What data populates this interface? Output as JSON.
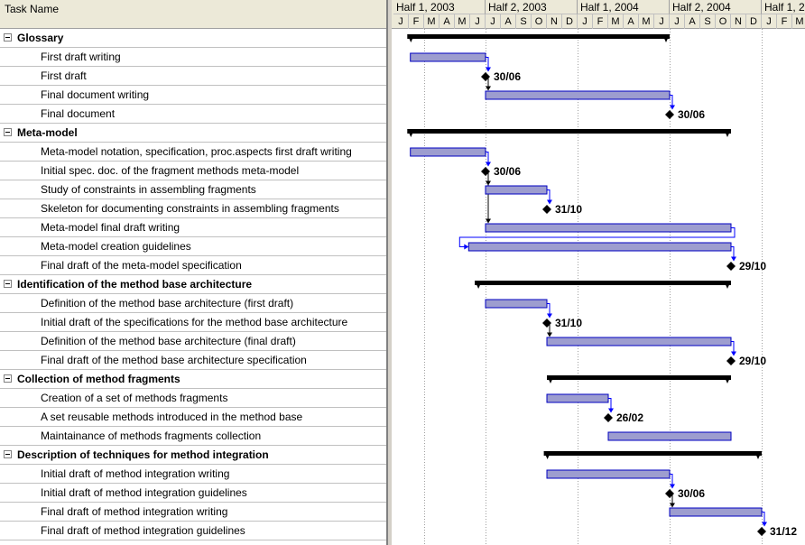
{
  "table": {
    "header": "Task Name",
    "tasks": [
      {
        "name": "Glossary",
        "summary": true
      },
      {
        "name": "First draft writing",
        "summary": false
      },
      {
        "name": "First draft",
        "summary": false
      },
      {
        "name": "Final document writing",
        "summary": false
      },
      {
        "name": "Final document",
        "summary": false
      },
      {
        "name": "Meta-model",
        "summary": true
      },
      {
        "name": "Meta-model notation, specification, proc.aspects first draft writing",
        "summary": false
      },
      {
        "name": "Initial spec. doc. of the fragment methods meta-model",
        "summary": false
      },
      {
        "name": "Study of constraints in assembling fragments",
        "summary": false
      },
      {
        "name": "Skeleton for documenting constraints in assembling fragments",
        "summary": false
      },
      {
        "name": "Meta-model final draft writing",
        "summary": false
      },
      {
        "name": "Meta-model creation guidelines",
        "summary": false
      },
      {
        "name": "Final draft of the meta-model specification",
        "summary": false
      },
      {
        "name": "Identification of the method base architecture",
        "summary": true
      },
      {
        "name": "Definition of the method base architecture (first draft)",
        "summary": false
      },
      {
        "name": "Initial draft of the specifications for the method base architecture",
        "summary": false
      },
      {
        "name": "Definition of the method base architecture (final draft)",
        "summary": false
      },
      {
        "name": "Final draft of the method base architecture specification",
        "summary": false
      },
      {
        "name": "Collection of method fragments",
        "summary": true
      },
      {
        "name": "Creation of a set of methods fragments",
        "summary": false
      },
      {
        "name": "A set reusable methods introduced in the method base",
        "summary": false
      },
      {
        "name": "Maintainance of methods fragments collection",
        "summary": false
      },
      {
        "name": "Description of techniques for method integration",
        "summary": true
      },
      {
        "name": "Initial draft of method integration  writing",
        "summary": false
      },
      {
        "name": "Initial draft of method integration guidelines",
        "summary": false
      },
      {
        "name": " Final draft of method integration  writing",
        "summary": false
      },
      {
        "name": "Final draft of method integration guidelines",
        "summary": false
      }
    ]
  },
  "timeline": {
    "halves": [
      "Half 1, 2003",
      "Half 2, 2003",
      "Half 1, 2004",
      "Half 2, 2004",
      "Half 1, 2005"
    ],
    "months": [
      "J",
      "F",
      "M",
      "A",
      "M",
      "J",
      "J",
      "A",
      "S",
      "O",
      "N",
      "D",
      "J",
      "F",
      "M",
      "A",
      "M",
      "J",
      "J",
      "A",
      "S",
      "O",
      "N",
      "D",
      "J",
      "F",
      "M"
    ]
  },
  "colors": {
    "bar_fill": "#9d9dcf",
    "bar_border": "#0000c0",
    "summary": "#000000",
    "link": "#0000ff",
    "header_bg": "#ece9d8"
  },
  "chart_data": {
    "type": "gantt",
    "x_unit": "month index from Jan 2003 (0 = start of January 2003)",
    "tasks": [
      {
        "row": 0,
        "kind": "summary",
        "start": 0.9,
        "end": 18.0
      },
      {
        "row": 1,
        "kind": "task",
        "start": 1.1,
        "end": 6.0
      },
      {
        "row": 2,
        "kind": "milestone",
        "at": 6.0,
        "label": "30/06"
      },
      {
        "row": 3,
        "kind": "task",
        "start": 6.0,
        "end": 18.0
      },
      {
        "row": 4,
        "kind": "milestone",
        "at": 18.0,
        "label": "30/06"
      },
      {
        "row": 5,
        "kind": "summary",
        "start": 0.9,
        "end": 22.0
      },
      {
        "row": 6,
        "kind": "task",
        "start": 1.1,
        "end": 6.0
      },
      {
        "row": 7,
        "kind": "milestone",
        "at": 6.0,
        "label": "30/06"
      },
      {
        "row": 8,
        "kind": "task",
        "start": 6.0,
        "end": 10.0
      },
      {
        "row": 9,
        "kind": "milestone",
        "at": 10.0,
        "label": "31/10"
      },
      {
        "row": 10,
        "kind": "task",
        "start": 6.0,
        "end": 22.0
      },
      {
        "row": 11,
        "kind": "task",
        "start": 4.9,
        "end": 22.0
      },
      {
        "row": 12,
        "kind": "milestone",
        "at": 22.0,
        "label": "29/10"
      },
      {
        "row": 13,
        "kind": "summary",
        "start": 5.3,
        "end": 22.0
      },
      {
        "row": 14,
        "kind": "task",
        "start": 6.0,
        "end": 10.0
      },
      {
        "row": 15,
        "kind": "milestone",
        "at": 10.0,
        "label": "31/10"
      },
      {
        "row": 16,
        "kind": "task",
        "start": 10.0,
        "end": 22.0
      },
      {
        "row": 17,
        "kind": "milestone",
        "at": 22.0,
        "label": "29/10"
      },
      {
        "row": 18,
        "kind": "summary",
        "start": 10.0,
        "end": 22.0
      },
      {
        "row": 19,
        "kind": "task",
        "start": 10.0,
        "end": 14.0
      },
      {
        "row": 20,
        "kind": "milestone",
        "at": 14.0,
        "label": "26/02"
      },
      {
        "row": 21,
        "kind": "task",
        "start": 14.0,
        "end": 22.0
      },
      {
        "row": 22,
        "kind": "summary",
        "start": 9.8,
        "end": 24.0
      },
      {
        "row": 23,
        "kind": "task",
        "start": 10.0,
        "end": 18.0
      },
      {
        "row": 24,
        "kind": "milestone",
        "at": 18.0,
        "label": "30/06"
      },
      {
        "row": 25,
        "kind": "task",
        "start": 18.0,
        "end": 24.0
      },
      {
        "row": 26,
        "kind": "milestone",
        "at": 24.0,
        "label": "31/12"
      }
    ],
    "links": [
      {
        "from": 1,
        "to": 2,
        "color": "blue"
      },
      {
        "from": 2,
        "to": 3,
        "color": "black"
      },
      {
        "from": 3,
        "to": 4,
        "color": "blue"
      },
      {
        "from": 6,
        "to": 7,
        "color": "blue"
      },
      {
        "from": 7,
        "to": 8,
        "color": "black"
      },
      {
        "from": 8,
        "to": 9,
        "color": "blue"
      },
      {
        "from": 7,
        "to": 10,
        "color": "black"
      },
      {
        "from": 10,
        "to": 11,
        "color": "blue"
      },
      {
        "from": 11,
        "to": 12,
        "color": "blue"
      },
      {
        "from": 14,
        "to": 15,
        "color": "blue"
      },
      {
        "from": 15,
        "to": 16,
        "color": "black"
      },
      {
        "from": 16,
        "to": 17,
        "color": "blue"
      },
      {
        "from": 19,
        "to": 20,
        "color": "blue"
      },
      {
        "from": 23,
        "to": 24,
        "color": "blue"
      },
      {
        "from": 24,
        "to": 25,
        "color": "black"
      },
      {
        "from": 25,
        "to": 26,
        "color": "blue"
      }
    ]
  }
}
